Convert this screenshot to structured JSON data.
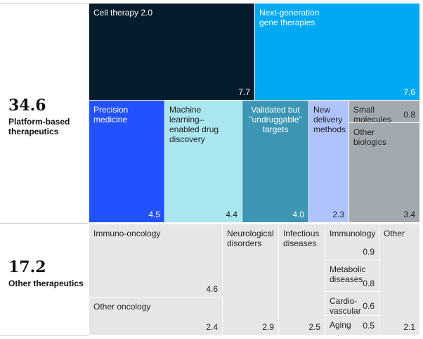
{
  "chart_data": {
    "type": "treemap",
    "groups": [
      {
        "total": "34.6",
        "name": "Platform-based therapeutics",
        "items": [
          {
            "name": "Cell therapy 2.0",
            "value": 7.7,
            "color": "#051c2c"
          },
          {
            "name": "Next-generation gene therapies",
            "value": 7.6,
            "color": "#00a9f4"
          },
          {
            "name": "Precision medicine",
            "value": 4.5,
            "color": "#2251ff"
          },
          {
            "name": "Machine learning–enabled drug discovery",
            "value": 4.4,
            "color": "#aae6f0"
          },
          {
            "name": "Validated but \"undruggable\" targets",
            "value": 4.0,
            "color": "#3c96b4"
          },
          {
            "name": "New delivery methods",
            "value": 2.3,
            "color": "#afc3ff"
          },
          {
            "name": "Small molecules",
            "value": 0.8,
            "color": "#a2aab0"
          },
          {
            "name": "Other biologics",
            "value": 3.4,
            "color": "#a2aab0"
          }
        ]
      },
      {
        "total": "17.2",
        "name": "Other therapeutics",
        "items": [
          {
            "name": "Immuno-oncology",
            "value": 4.6,
            "color": "#e6e6e6"
          },
          {
            "name": "Other oncology",
            "value": 2.4,
            "color": "#e6e6e6"
          },
          {
            "name": "Neurological disorders",
            "value": 2.9,
            "color": "#e6e6e6"
          },
          {
            "name": "Infectious diseases",
            "value": 2.5,
            "color": "#e6e6e6"
          },
          {
            "name": "Immunology",
            "value": 0.9,
            "color": "#e6e6e6"
          },
          {
            "name": "Metabolic diseases",
            "value": 0.8,
            "color": "#e6e6e6"
          },
          {
            "name": "Cardio-vascular",
            "value": 0.6,
            "color": "#e6e6e6"
          },
          {
            "name": "Aging",
            "value": 0.5,
            "color": "#e6e6e6"
          },
          {
            "name": "Other",
            "value": 2.1,
            "color": "#e6e6e6"
          }
        ]
      }
    ]
  }
}
